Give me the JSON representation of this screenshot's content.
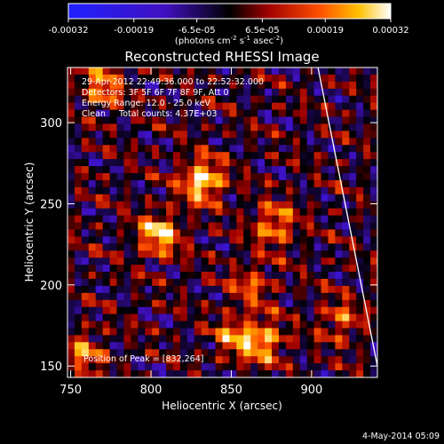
{
  "chart_data": {
    "type": "heatmap",
    "title": "Reconstructed RHESSI Image",
    "xlabel": "Heliocentric X (arcsec)",
    "ylabel": "Heliocentric Y (arcsec)",
    "xlim": [
      748,
      941
    ],
    "ylim": [
      143,
      334
    ],
    "x_ticks": [
      750,
      800,
      850,
      900
    ],
    "y_ticks": [
      150,
      200,
      250,
      300
    ],
    "colorbar": {
      "ticks": [
        "-0.00032",
        "-0.00019",
        "-6.5e-05",
        "6.5e-05",
        "0.00019",
        "0.00032"
      ],
      "tick_values": [
        -0.00032,
        -0.00019,
        -6.5e-05,
        6.5e-05,
        0.00019,
        0.00032
      ],
      "range": [
        -0.00032,
        0.00032
      ],
      "unit_parts": [
        "(photons cm",
        "-2",
        " s",
        "-1",
        " asec",
        "-2",
        ")"
      ]
    },
    "annotations": [
      "29-Apr-2012 22:49:36.000 to 22:52:32.000",
      "Detectors: 3F 5F 6F 7F 8F 9F, Att 0",
      "Energy Range: 12.0 - 25.0 keV",
      "Clean     Total counts: 4.37E+03",
      "Position of Peak = [832,264]"
    ],
    "peak": [
      832,
      264
    ],
    "bright_sources": [
      {
        "x": 832,
        "y": 264,
        "value": 0.00032
      },
      {
        "x": 805,
        "y": 231,
        "value": 0.00028
      },
      {
        "x": 877,
        "y": 237,
        "value": 0.00022
      },
      {
        "x": 870,
        "y": 165,
        "value": 0.00024
      },
      {
        "x": 863,
        "y": 200,
        "value": 0.00015
      },
      {
        "x": 852,
        "y": 168,
        "value": 0.00018
      },
      {
        "x": 770,
        "y": 322,
        "value": 0.0002
      },
      {
        "x": 758,
        "y": 158,
        "value": 0.00018
      },
      {
        "x": 918,
        "y": 178,
        "value": 0.00016
      }
    ],
    "limb_line": {
      "x": [
        904,
        941
      ],
      "y": [
        334,
        150
      ]
    },
    "colors": {
      "background": "#000000",
      "text": "#ffffff"
    }
  },
  "footer": {
    "timestamp": "4-May-2014 05:09"
  }
}
